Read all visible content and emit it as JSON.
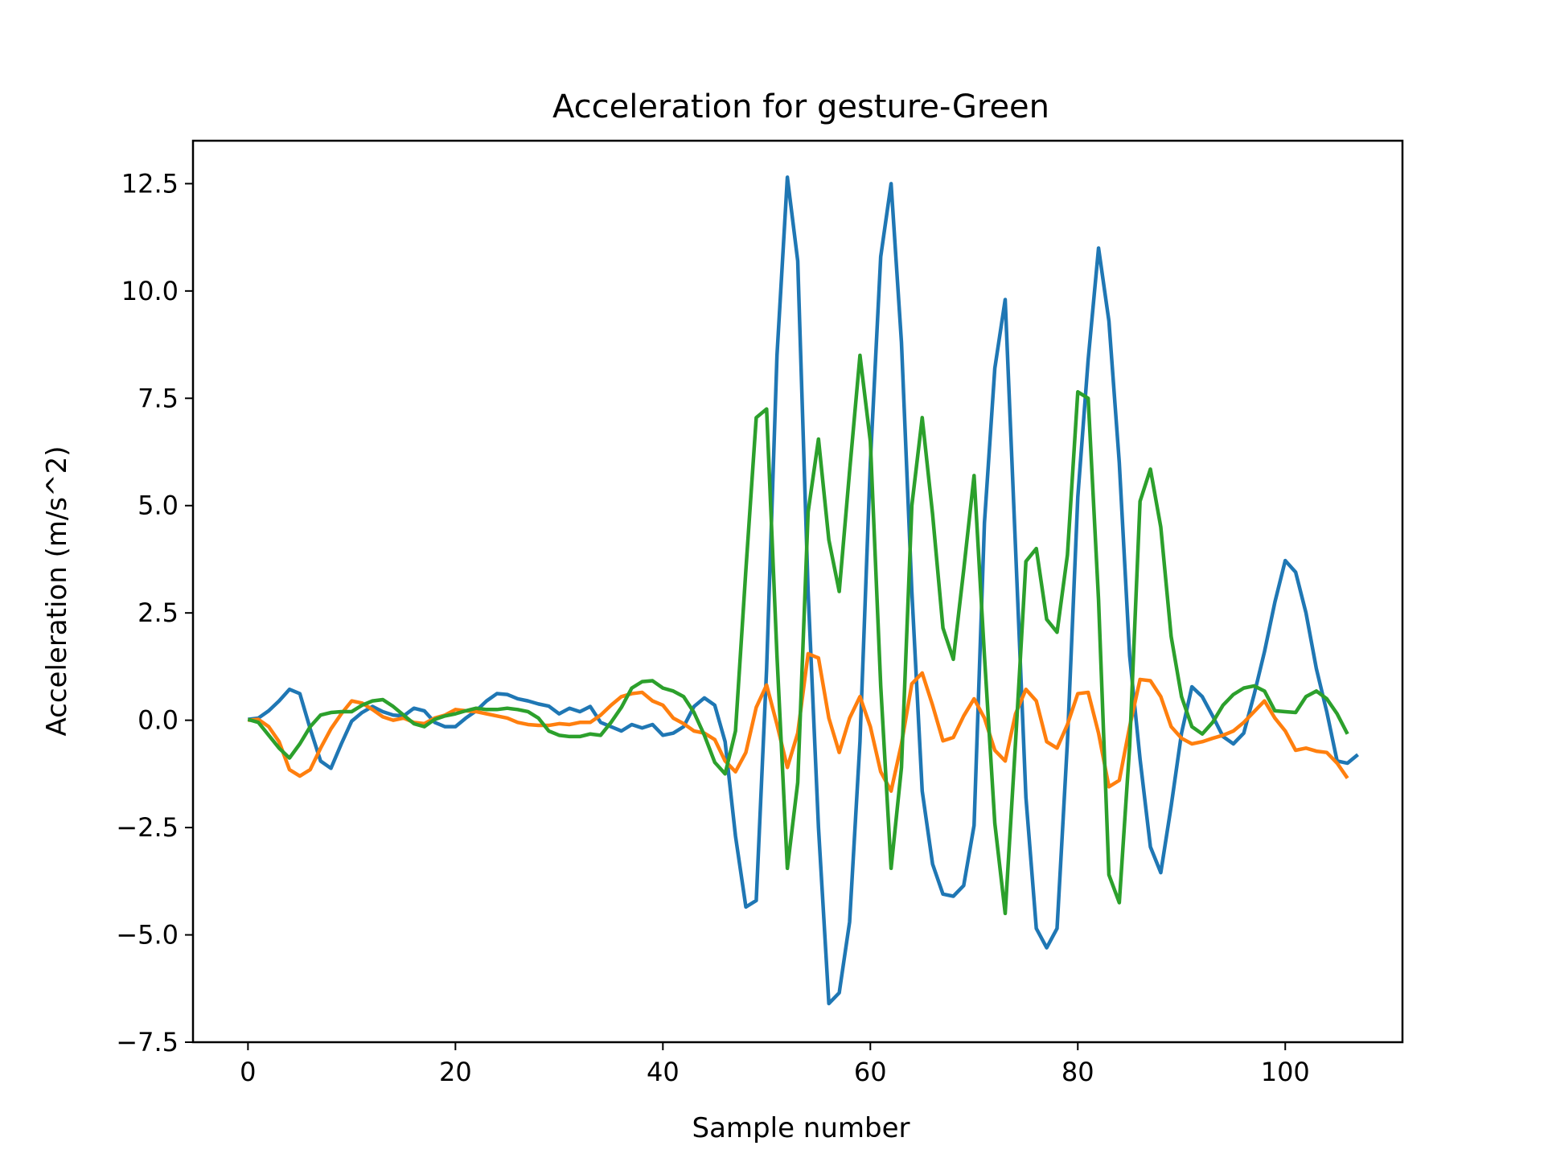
{
  "chart_data": {
    "type": "line",
    "title": "Acceleration for gesture-Green",
    "xlabel": "Sample number",
    "ylabel": "Acceleration (m/s^2)",
    "xlim": [
      -5.3,
      111.3
    ],
    "ylim": [
      -7.5,
      13.5
    ],
    "x_ticks": [
      0,
      20,
      40,
      60,
      80,
      100
    ],
    "x_tick_labels": [
      "0",
      "20",
      "40",
      "60",
      "80",
      "100"
    ],
    "y_ticks": [
      -7.5,
      -5.0,
      -2.5,
      0.0,
      2.5,
      5.0,
      7.5,
      10.0,
      12.5
    ],
    "y_tick_labels": [
      "−7.5",
      "−5.0",
      "−2.5",
      "0.0",
      "2.5",
      "5.0",
      "7.5",
      "10.0",
      "12.5"
    ],
    "grid": false,
    "legend": false,
    "series": [
      {
        "color": "#1f77b4",
        "values": [
          0.02,
          0.05,
          0.22,
          0.45,
          0.72,
          0.62,
          -0.2,
          -0.95,
          -1.12,
          -0.55,
          -0.02,
          0.18,
          0.32,
          0.2,
          0.12,
          0.1,
          0.28,
          0.22,
          -0.05,
          -0.15,
          -0.15,
          0.05,
          0.22,
          0.45,
          0.62,
          0.6,
          0.5,
          0.45,
          0.38,
          0.33,
          0.15,
          0.28,
          0.2,
          0.32,
          -0.05,
          -0.15,
          -0.25,
          -0.1,
          -0.18,
          -0.1,
          -0.35,
          -0.3,
          -0.15,
          0.32,
          0.52,
          0.35,
          -0.5,
          -2.7,
          -4.35,
          -4.2,
          1.2,
          8.5,
          12.65,
          10.7,
          3.0,
          -2.5,
          -6.6,
          -6.35,
          -4.7,
          -0.5,
          6.0,
          10.8,
          12.5,
          8.8,
          3.0,
          -1.65,
          -3.35,
          -4.05,
          -4.1,
          -3.85,
          -2.45,
          4.6,
          8.2,
          9.8,
          4.0,
          -1.8,
          -4.85,
          -5.3,
          -4.85,
          -0.5,
          5.2,
          8.4,
          11.0,
          9.3,
          6.0,
          1.5,
          -0.9,
          -2.95,
          -3.55,
          -2.0,
          -0.3,
          0.78,
          0.55,
          0.1,
          -0.38,
          -0.55,
          -0.3,
          0.6,
          1.6,
          2.75,
          3.72,
          3.45,
          2.5,
          1.2,
          0.2,
          -0.95,
          -1.0,
          -0.8
        ]
      },
      {
        "color": "#ff7f0e",
        "values": [
          0.0,
          0.02,
          -0.15,
          -0.5,
          -1.15,
          -1.3,
          -1.15,
          -0.65,
          -0.2,
          0.15,
          0.45,
          0.4,
          0.25,
          0.08,
          0.0,
          0.05,
          -0.05,
          -0.08,
          0.05,
          0.12,
          0.25,
          0.22,
          0.2,
          0.15,
          0.1,
          0.05,
          -0.05,
          -0.1,
          -0.12,
          -0.12,
          -0.08,
          -0.1,
          -0.05,
          -0.05,
          0.12,
          0.35,
          0.55,
          0.62,
          0.65,
          0.45,
          0.35,
          0.05,
          -0.08,
          -0.25,
          -0.3,
          -0.45,
          -0.95,
          -1.2,
          -0.75,
          0.3,
          0.82,
          -0.1,
          -1.1,
          -0.3,
          1.55,
          1.45,
          0.05,
          -0.75,
          0.05,
          0.55,
          -0.15,
          -1.2,
          -1.65,
          -0.55,
          0.85,
          1.1,
          0.35,
          -0.48,
          -0.4,
          0.1,
          0.5,
          0.05,
          -0.7,
          -0.95,
          0.15,
          0.72,
          0.45,
          -0.5,
          -0.65,
          -0.1,
          0.62,
          0.65,
          -0.3,
          -1.55,
          -1.4,
          -0.15,
          0.95,
          0.92,
          0.55,
          -0.15,
          -0.42,
          -0.55,
          -0.5,
          -0.42,
          -0.35,
          -0.25,
          -0.05,
          0.2,
          0.45,
          0.05,
          -0.25,
          -0.7,
          -0.65,
          -0.72,
          -0.75,
          -1.0,
          -1.35
        ]
      },
      {
        "color": "#2ca02c",
        "values": [
          0.02,
          -0.05,
          -0.35,
          -0.65,
          -0.88,
          -0.55,
          -0.15,
          0.12,
          0.18,
          0.2,
          0.2,
          0.35,
          0.45,
          0.48,
          0.32,
          0.12,
          -0.08,
          -0.15,
          0.02,
          0.1,
          0.15,
          0.22,
          0.28,
          0.25,
          0.25,
          0.28,
          0.25,
          0.2,
          0.05,
          -0.25,
          -0.35,
          -0.38,
          -0.38,
          -0.32,
          -0.35,
          -0.05,
          0.3,
          0.75,
          0.9,
          0.92,
          0.75,
          0.68,
          0.55,
          0.18,
          -0.35,
          -0.98,
          -1.25,
          -0.25,
          3.5,
          7.05,
          7.25,
          1.5,
          -3.45,
          -1.45,
          4.85,
          6.55,
          4.2,
          3.0,
          5.8,
          8.5,
          6.5,
          0.8,
          -3.45,
          -1.1,
          5.0,
          7.05,
          4.8,
          2.15,
          1.42,
          3.5,
          5.7,
          1.5,
          -2.4,
          -4.5,
          -0.5,
          3.7,
          4.0,
          2.35,
          2.05,
          3.85,
          7.65,
          7.5,
          2.8,
          -3.6,
          -4.25,
          -0.6,
          5.1,
          5.85,
          4.5,
          1.95,
          0.55,
          -0.15,
          -0.32,
          -0.05,
          0.35,
          0.6,
          0.75,
          0.8,
          0.68,
          0.22,
          0.2,
          0.18,
          0.55,
          0.68,
          0.5,
          0.15,
          -0.32
        ]
      }
    ]
  }
}
